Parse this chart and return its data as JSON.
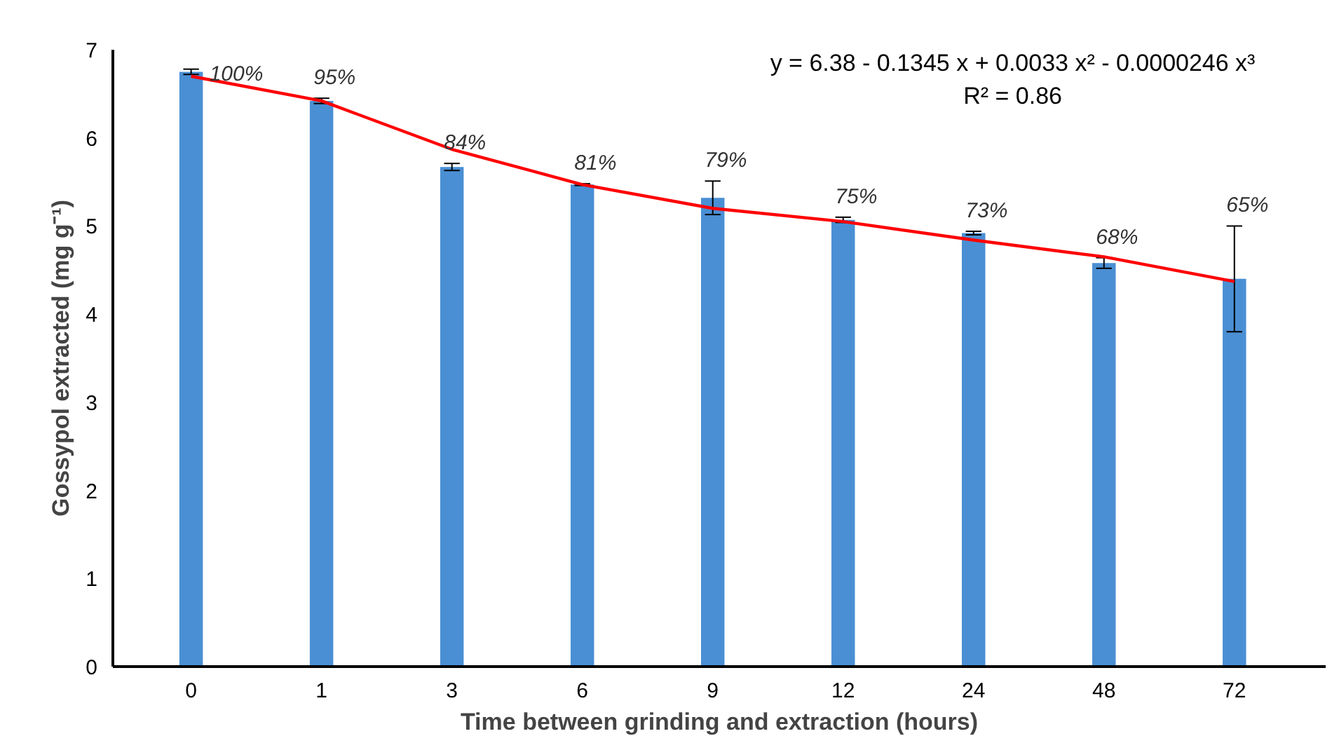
{
  "chart_data": {
    "type": "bar",
    "xlabel": "Time between grinding and extraction (hours)",
    "ylabel": "Gossypol extracted (mg g⁻¹)",
    "categories": [
      "0",
      "1",
      "3",
      "6",
      "9",
      "12",
      "24",
      "48",
      "72"
    ],
    "ylim": [
      0,
      7
    ],
    "yticks": [
      0,
      1,
      2,
      3,
      4,
      5,
      6,
      7
    ],
    "grid": false,
    "series": [
      {
        "color": "#4a8fd4",
        "values": [
          6.75,
          6.42,
          5.67,
          5.47,
          5.32,
          5.07,
          4.92,
          4.58,
          4.4
        ],
        "errors": [
          0.03,
          0.03,
          0.04,
          0.01,
          0.19,
          0.03,
          0.02,
          0.06,
          0.6
        ]
      },
      {
        "type": "line",
        "color": "#ff0000",
        "values": [
          6.7,
          6.42,
          5.87,
          5.47,
          5.2,
          5.05,
          4.84,
          4.65,
          4.37
        ]
      }
    ],
    "annotations": [
      "y = 6.38 - 0.1345 x + 0.0033 x² - 0.0000246 x³",
      "R² = 0.86",
      {
        "text": "100%",
        "x": "0",
        "y": 6.78
      },
      {
        "text": "95%",
        "x": "1",
        "y": 6.45
      },
      {
        "text": "84%",
        "x": "3",
        "y": 5.71
      },
      {
        "text": "81%",
        "x": "6",
        "y": 5.48
      },
      {
        "text": "79%",
        "x": "9",
        "y": 5.51
      },
      {
        "text": "75%",
        "x": "12",
        "y": 5.1
      },
      {
        "text": "73%",
        "x": "24",
        "y": 4.94
      },
      {
        "text": "68%",
        "x": "48",
        "y": 4.64
      },
      {
        "text": "65%",
        "x": "72",
        "y": 5.0
      }
    ]
  }
}
